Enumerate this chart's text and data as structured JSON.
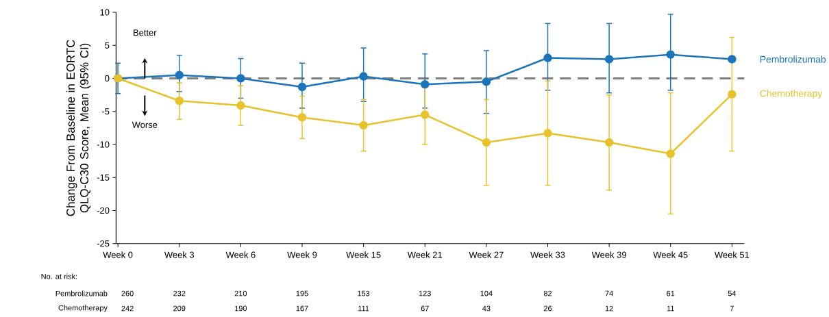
{
  "chart_data": {
    "type": "line",
    "ylabel": "Change From Baseline in EORTC QLQ-C30 Score, Mean (95% CI)",
    "categories": [
      "Week 0",
      "Week 3",
      "Week 6",
      "Week 9",
      "Week 15",
      "Week 21",
      "Week 27",
      "Week 33",
      "Week 39",
      "Week 45",
      "Week 51"
    ],
    "series": [
      {
        "name": "Pembrolizumab",
        "color": "#1a75bb",
        "values": [
          0,
          0.5,
          0,
          -1.3,
          0.3,
          -0.9,
          -0.5,
          3.1,
          2.9,
          3.6,
          2.9
        ],
        "errors": [
          [
            -2.3,
            2.3
          ],
          [
            -2,
            3.5
          ],
          [
            -3,
            3
          ],
          [
            -4.5,
            2.3
          ],
          [
            -3.5,
            4.6
          ],
          [
            -4.5,
            3.7
          ],
          [
            -5.3,
            4.2
          ],
          [
            -1.8,
            8.3
          ],
          [
            -2.2,
            8.3
          ],
          [
            -1.8,
            9.7
          ],
          null
        ]
      },
      {
        "name": "Chemotherapy",
        "color": "#e8c22a",
        "values": [
          0,
          -3.4,
          -4.1,
          -5.9,
          -7.1,
          -5.5,
          -9.7,
          -8.3,
          -9.7,
          -11.4,
          -2.4
        ],
        "errors": [
          null,
          [
            -6.2,
            -0.7
          ],
          [
            -7.1,
            -1.1
          ],
          [
            -9.1,
            -2.7
          ],
          [
            -11,
            -3.2
          ],
          [
            -10,
            -1.4
          ],
          [
            -16.2,
            -3.2
          ],
          [
            -16.2,
            -0.4
          ],
          [
            -16.9,
            -2.5
          ],
          [
            -20.5,
            -2.2
          ],
          [
            -11,
            6.2
          ]
        ]
      }
    ],
    "ylim": [
      -25,
      10
    ],
    "yticks": [
      -25,
      -20,
      -15,
      -10,
      -5,
      0,
      5,
      10
    ],
    "ref_lines": [
      {
        "axis": "y",
        "value": 0,
        "color": "#808080",
        "line_style": "dashed"
      }
    ],
    "marker": "circle",
    "line_style": "solid",
    "grid": false,
    "annotations": [
      "Better",
      "Worse",
      "No. at risk:",
      "Pembrolizumab",
      "260",
      "232",
      "210",
      "195",
      "153",
      "123",
      "104",
      "82",
      "74",
      "61",
      "54",
      "Chemotherapy",
      "242",
      "209",
      "190",
      "167",
      "111",
      "67",
      "43",
      "26",
      "12",
      "11",
      "7"
    ]
  }
}
